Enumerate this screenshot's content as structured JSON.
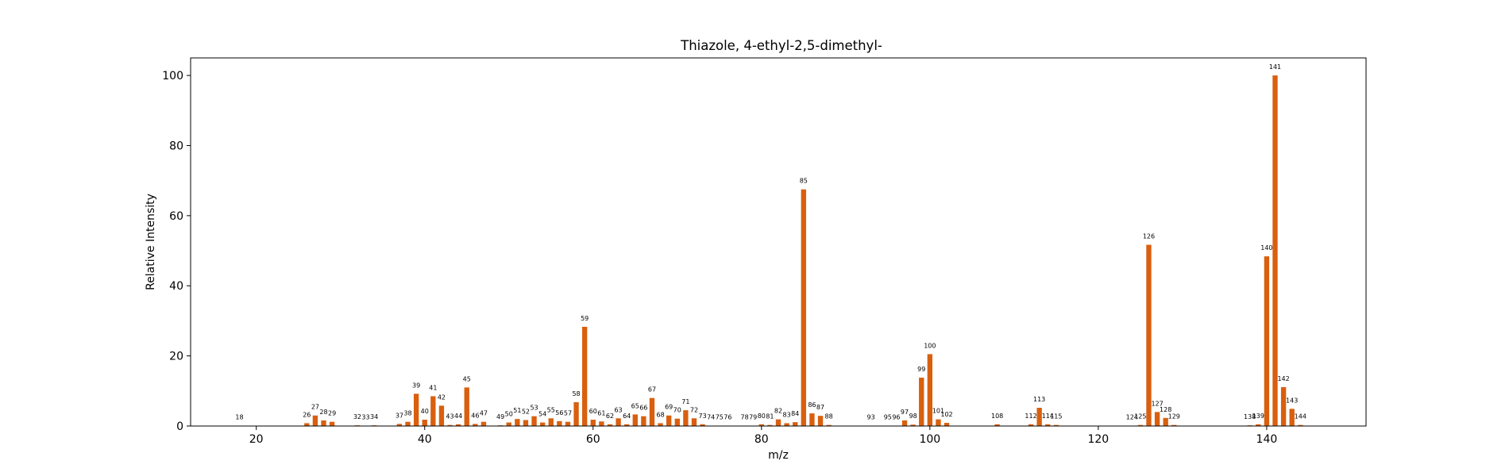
{
  "chart_data": {
    "type": "bar",
    "title": "Thiazole, 4-ethyl-2,5-dimethyl-",
    "xlabel": "m/z",
    "ylabel": "Relative Intensity",
    "xlim": [
      12.2,
      151.8
    ],
    "ylim": [
      0,
      105
    ],
    "xticks": [
      20,
      40,
      60,
      80,
      100,
      120,
      140
    ],
    "yticks": [
      0,
      20,
      40,
      60,
      80,
      100
    ],
    "bar_color": "#d95f0e",
    "grid": false,
    "peaks": [
      {
        "mz": 18,
        "intensity": 0.1
      },
      {
        "mz": 26,
        "intensity": 0.8
      },
      {
        "mz": 27,
        "intensity": 3.0
      },
      {
        "mz": 28,
        "intensity": 1.6
      },
      {
        "mz": 29,
        "intensity": 1.2
      },
      {
        "mz": 32,
        "intensity": 0.2
      },
      {
        "mz": 33,
        "intensity": 0.1
      },
      {
        "mz": 34,
        "intensity": 0.2
      },
      {
        "mz": 37,
        "intensity": 0.6
      },
      {
        "mz": 38,
        "intensity": 1.2
      },
      {
        "mz": 39,
        "intensity": 9.2
      },
      {
        "mz": 40,
        "intensity": 1.8
      },
      {
        "mz": 41,
        "intensity": 8.5
      },
      {
        "mz": 42,
        "intensity": 5.8
      },
      {
        "mz": 43,
        "intensity": 0.3
      },
      {
        "mz": 44,
        "intensity": 0.5
      },
      {
        "mz": 45,
        "intensity": 11.0
      },
      {
        "mz": 46,
        "intensity": 0.6
      },
      {
        "mz": 47,
        "intensity": 1.2
      },
      {
        "mz": 49,
        "intensity": 0.2
      },
      {
        "mz": 50,
        "intensity": 1.0
      },
      {
        "mz": 51,
        "intensity": 2.0
      },
      {
        "mz": 52,
        "intensity": 1.7
      },
      {
        "mz": 53,
        "intensity": 2.8
      },
      {
        "mz": 54,
        "intensity": 1.0
      },
      {
        "mz": 55,
        "intensity": 2.2
      },
      {
        "mz": 56,
        "intensity": 1.4
      },
      {
        "mz": 57,
        "intensity": 1.2
      },
      {
        "mz": 58,
        "intensity": 6.8
      },
      {
        "mz": 59,
        "intensity": 28.3
      },
      {
        "mz": 60,
        "intensity": 1.8
      },
      {
        "mz": 61,
        "intensity": 1.3
      },
      {
        "mz": 62,
        "intensity": 0.5
      },
      {
        "mz": 63,
        "intensity": 2.2
      },
      {
        "mz": 64,
        "intensity": 0.5
      },
      {
        "mz": 65,
        "intensity": 3.3
      },
      {
        "mz": 66,
        "intensity": 2.8
      },
      {
        "mz": 67,
        "intensity": 8.0
      },
      {
        "mz": 68,
        "intensity": 0.8
      },
      {
        "mz": 69,
        "intensity": 3.0
      },
      {
        "mz": 70,
        "intensity": 2.1
      },
      {
        "mz": 71,
        "intensity": 4.5
      },
      {
        "mz": 72,
        "intensity": 2.2
      },
      {
        "mz": 73,
        "intensity": 0.5
      },
      {
        "mz": 74,
        "intensity": 0.1
      },
      {
        "mz": 75,
        "intensity": 0.1
      },
      {
        "mz": 76,
        "intensity": 0.1
      },
      {
        "mz": 78,
        "intensity": 0.1
      },
      {
        "mz": 79,
        "intensity": 0.1
      },
      {
        "mz": 80,
        "intensity": 0.5
      },
      {
        "mz": 81,
        "intensity": 0.3
      },
      {
        "mz": 82,
        "intensity": 1.9
      },
      {
        "mz": 83,
        "intensity": 0.8
      },
      {
        "mz": 84,
        "intensity": 1.1
      },
      {
        "mz": 85,
        "intensity": 67.5
      },
      {
        "mz": 86,
        "intensity": 3.6
      },
      {
        "mz": 87,
        "intensity": 2.9
      },
      {
        "mz": 88,
        "intensity": 0.3
      },
      {
        "mz": 93,
        "intensity": 0.1
      },
      {
        "mz": 95,
        "intensity": 0.1
      },
      {
        "mz": 96,
        "intensity": 0.1
      },
      {
        "mz": 97,
        "intensity": 1.6
      },
      {
        "mz": 98,
        "intensity": 0.4
      },
      {
        "mz": 99,
        "intensity": 13.8
      },
      {
        "mz": 100,
        "intensity": 20.5
      },
      {
        "mz": 101,
        "intensity": 1.9
      },
      {
        "mz": 102,
        "intensity": 0.9
      },
      {
        "mz": 108,
        "intensity": 0.5
      },
      {
        "mz": 112,
        "intensity": 0.5
      },
      {
        "mz": 113,
        "intensity": 5.2
      },
      {
        "mz": 114,
        "intensity": 0.5
      },
      {
        "mz": 115,
        "intensity": 0.3
      },
      {
        "mz": 124,
        "intensity": 0.1
      },
      {
        "mz": 125,
        "intensity": 0.3
      },
      {
        "mz": 126,
        "intensity": 51.7
      },
      {
        "mz": 127,
        "intensity": 4.0
      },
      {
        "mz": 128,
        "intensity": 2.3
      },
      {
        "mz": 129,
        "intensity": 0.3
      },
      {
        "mz": 138,
        "intensity": 0.2
      },
      {
        "mz": 139,
        "intensity": 0.5
      },
      {
        "mz": 140,
        "intensity": 48.4
      },
      {
        "mz": 141,
        "intensity": 100.0
      },
      {
        "mz": 142,
        "intensity": 11.1
      },
      {
        "mz": 143,
        "intensity": 4.9
      },
      {
        "mz": 144,
        "intensity": 0.3
      }
    ]
  }
}
